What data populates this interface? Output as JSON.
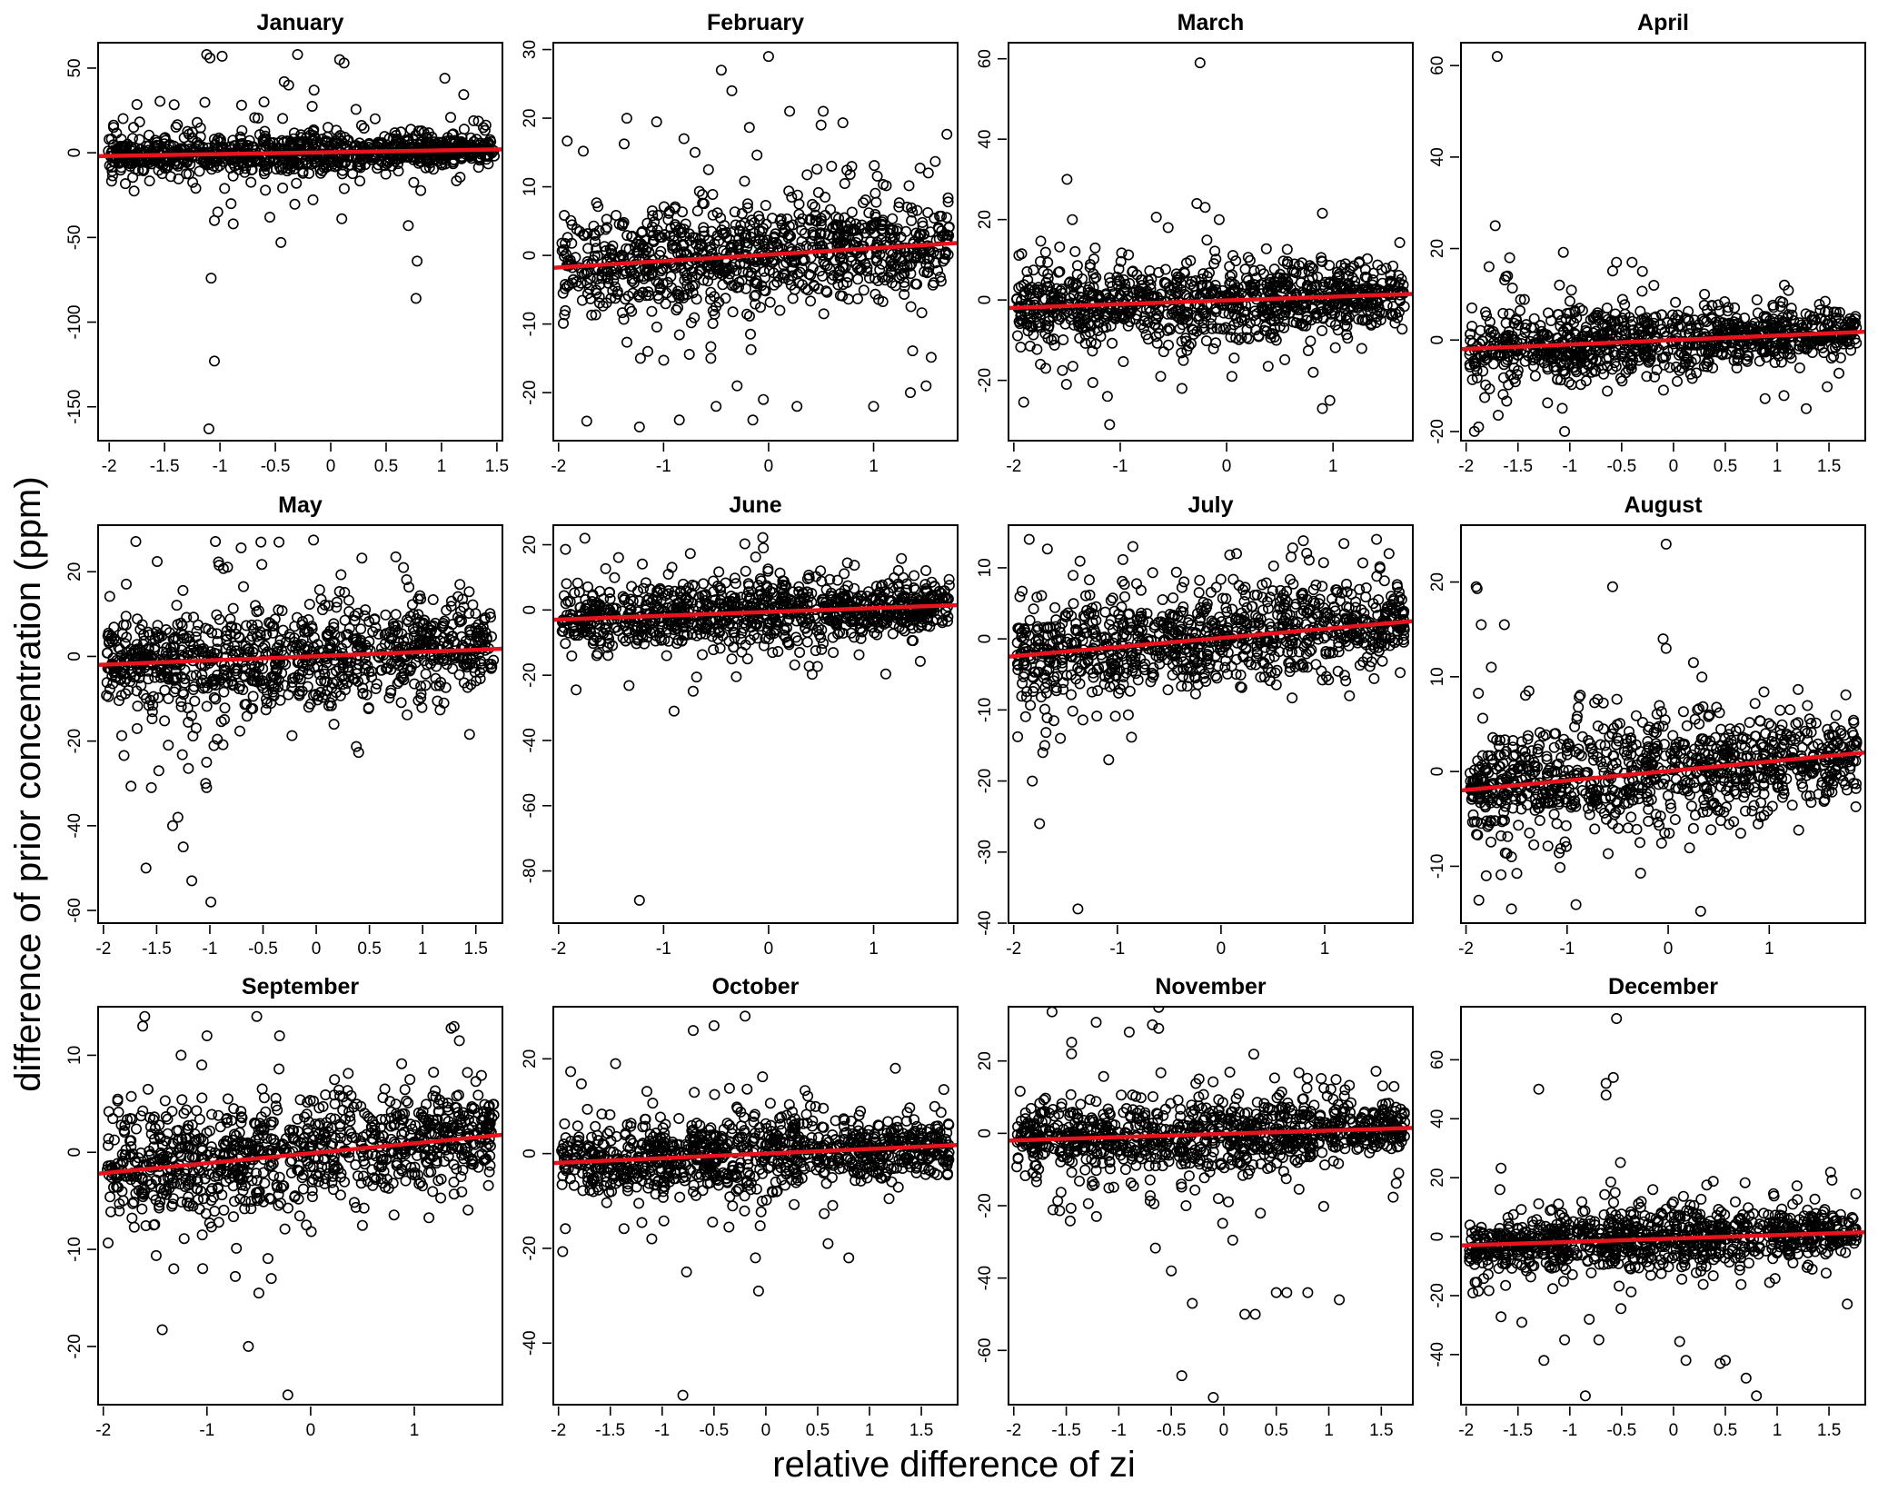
{
  "figure": {
    "xlabel": "relative difference of zi",
    "ylabel": "difference of prior concentration (ppm)"
  },
  "chart_data": [
    {
      "type": "scatter",
      "title": "January",
      "xlim": [
        -2.1,
        1.55
      ],
      "ylim": [
        -170,
        65
      ],
      "xticks": [
        -2.0,
        -1.5,
        -1.0,
        -0.5,
        0.0,
        0.5,
        1.0,
        1.5
      ],
      "yticks": [
        50,
        0,
        -50,
        -100,
        -150
      ],
      "fit": {
        "x": [
          -2.1,
          1.55
        ],
        "y": [
          -2,
          2
        ]
      },
      "spread": {
        "core": [
          4,
          6,
          3
        ],
        "tail": [
          18,
          12,
          12
        ]
      },
      "points": {
        "x": [
          -1.12,
          -1.09,
          -1.1,
          -1.05,
          -0.98,
          -1.08,
          -0.88,
          -0.3,
          -0.45,
          -1.02,
          0.08,
          0.12,
          1.03,
          -0.42,
          0.77,
          0.78,
          -0.55,
          -1.05,
          -0.15,
          -0.38,
          0.1,
          0.7,
          -0.9
        ],
        "y": [
          58,
          56,
          -163,
          -123,
          57,
          -74,
          -42,
          58,
          -53,
          -35,
          55,
          53,
          44,
          42,
          -86,
          -64,
          -38,
          -40,
          37,
          40,
          -39,
          -43,
          -30
        ]
      }
    },
    {
      "type": "scatter",
      "title": "February",
      "xlim": [
        -2.05,
        1.8
      ],
      "ylim": [
        -27,
        31
      ],
      "xticks": [
        -2,
        -1,
        0,
        1
      ],
      "yticks": [
        30,
        20,
        10,
        0,
        -10,
        -20
      ],
      "fit": {
        "x": [
          -2.05,
          1.8
        ],
        "y": [
          -1.8,
          1.8
        ]
      },
      "spread": {
        "core": [
          3,
          4,
          2.5
        ],
        "tail": [
          10,
          7,
          7
        ]
      },
      "points": {
        "x": [
          0.0,
          -0.45,
          -0.35,
          -1.35,
          0.2,
          -1.23,
          -1.15,
          -1.22,
          -0.85,
          -0.15,
          0.5,
          0.52,
          -0.05,
          -0.55,
          1.0,
          1.5,
          1.35,
          0.27,
          -0.5,
          -0.7,
          0.6,
          -0.3
        ],
        "y": [
          29,
          27,
          24,
          20,
          21,
          -25,
          -14,
          -15,
          -24,
          -24,
          19,
          21,
          -21,
          -15,
          -22,
          -19,
          -20,
          -22,
          -22,
          15,
          13,
          -19
        ]
      }
    },
    {
      "type": "scatter",
      "title": "March",
      "xlim": [
        -2.05,
        1.75
      ],
      "ylim": [
        -35,
        64
      ],
      "xticks": [
        -2,
        -1,
        0,
        1
      ],
      "yticks": [
        60,
        40,
        20,
        0,
        -20
      ],
      "fit": {
        "x": [
          -2.05,
          1.75
        ],
        "y": [
          -2,
          1.5
        ]
      },
      "spread": {
        "core": [
          4,
          5,
          3
        ],
        "tail": [
          12,
          9,
          8
        ]
      },
      "points": {
        "x": [
          -0.25,
          -1.1,
          -1.12,
          -1.5,
          -0.28,
          -0.07,
          -1.75,
          -1.7,
          -0.42,
          0.9,
          0.97,
          -1.45,
          -0.55,
          -0.62,
          0.05
        ],
        "y": [
          59,
          -31,
          -24,
          30,
          24,
          20,
          -16,
          -17,
          -22,
          -27,
          -25,
          20,
          18,
          -19,
          -19
        ]
      }
    },
    {
      "type": "scatter",
      "title": "April",
      "xlim": [
        -2.05,
        1.85
      ],
      "ylim": [
        -22,
        65
      ],
      "xticks": [
        -2.0,
        -1.5,
        -1.0,
        -0.5,
        0.0,
        0.5,
        1.0,
        1.5
      ],
      "yticks": [
        60,
        40,
        20,
        0,
        -20
      ],
      "fit": {
        "x": [
          -2.05,
          1.85
        ],
        "y": [
          -2,
          1.8
        ]
      },
      "spread": {
        "core": [
          3,
          4,
          2
        ],
        "tail": [
          9,
          6,
          5
        ]
      },
      "points": {
        "x": [
          -1.7,
          -1.72,
          -1.92,
          -1.88,
          -1.58,
          -1.05,
          -1.1,
          -0.55,
          -0.4,
          1.07,
          1.28,
          -1.6,
          -0.3,
          0.3
        ],
        "y": [
          62,
          25,
          -20,
          -19,
          18,
          -20,
          12,
          17,
          17,
          12,
          -15,
          14,
          15,
          10
        ]
      }
    },
    {
      "type": "scatter",
      "title": "May",
      "xlim": [
        -2.05,
        1.75
      ],
      "ylim": [
        -63,
        31
      ],
      "xticks": [
        -2.0,
        -1.5,
        -1.0,
        -0.5,
        0.0,
        0.5,
        1.0,
        1.5
      ],
      "yticks": [
        20,
        0,
        -20,
        -40,
        -60
      ],
      "fit": {
        "x": [
          -2.05,
          1.75
        ],
        "y": [
          -2,
          1.8
        ]
      },
      "spread": {
        "core": [
          5,
          6,
          4
        ],
        "tail": [
          14,
          11,
          9
        ]
      },
      "points": {
        "x": [
          -0.99,
          -1.6,
          -1.17,
          -1.3,
          -1.25,
          -1.03,
          -1.04,
          -1.03,
          -1.55,
          -1.48,
          -1.35,
          -0.52,
          -0.35,
          0.82,
          1.2,
          1.35
        ],
        "y": [
          -58,
          -50,
          -53,
          -38,
          -45,
          -31,
          -30,
          -25,
          -31,
          -27,
          -40,
          27,
          27,
          21,
          -11,
          17
        ]
      }
    },
    {
      "type": "scatter",
      "title": "June",
      "xlim": [
        -2.05,
        1.8
      ],
      "ylim": [
        -96,
        26
      ],
      "xticks": [
        -2,
        -1,
        0,
        1
      ],
      "yticks": [
        20,
        0,
        -20,
        -40,
        -60,
        -80
      ],
      "fit": {
        "x": [
          -2.05,
          1.8
        ],
        "y": [
          -3,
          1.5
        ]
      },
      "spread": {
        "core": [
          4,
          5,
          3.5
        ],
        "tail": [
          12,
          9,
          7
        ]
      },
      "points": {
        "x": [
          -1.23,
          -0.9,
          -1.75,
          -0.05,
          -0.35,
          -0.2
        ],
        "y": [
          -89,
          -31,
          22,
          19,
          -15,
          -15
        ]
      }
    },
    {
      "type": "scatter",
      "title": "July",
      "xlim": [
        -2.05,
        1.85
      ],
      "ylim": [
        -40,
        16
      ],
      "xticks": [
        -2,
        -1,
        0,
        1
      ],
      "yticks": [
        10,
        0,
        -10,
        -20,
        -30,
        -40
      ],
      "fit": {
        "x": [
          -2.05,
          1.85
        ],
        "y": [
          -2.5,
          2.5
        ]
      },
      "spread": {
        "core": [
          3,
          3.5,
          2.5
        ],
        "tail": [
          7,
          6,
          5
        ]
      },
      "points": {
        "x": [
          -1.38,
          -1.75,
          -1.82,
          -1.72,
          -1.7,
          -1.55,
          1.5,
          -1.85,
          0.15,
          -0.85,
          1.62
        ],
        "y": [
          -38,
          -26,
          -20,
          -16,
          -15,
          -14,
          14,
          14,
          12,
          13,
          12
        ]
      }
    },
    {
      "type": "scatter",
      "title": "August",
      "xlim": [
        -2.05,
        1.95
      ],
      "ylim": [
        -16,
        26
      ],
      "xticks": [
        -2,
        -1,
        0,
        1
      ],
      "yticks": [
        20,
        10,
        0,
        -10
      ],
      "fit": {
        "x": [
          -2.05,
          1.95
        ],
        "y": [
          -2,
          2
        ]
      },
      "spread": {
        "core": [
          2.5,
          3,
          2
        ],
        "tail": [
          6,
          5,
          4
        ]
      },
      "points": {
        "x": [
          -0.02,
          -1.9,
          -1.89,
          -0.55,
          -1.55,
          -1.85,
          -1.75,
          -0.05,
          -0.02,
          0.25,
          -1.62,
          -1.55,
          -1.8
        ],
        "y": [
          24,
          19.5,
          19.3,
          19.5,
          -14.5,
          15.5,
          11,
          14,
          13,
          11.5,
          15.5,
          -9,
          -11
        ]
      }
    },
    {
      "type": "scatter",
      "title": "September",
      "xlim": [
        -2.05,
        1.85
      ],
      "ylim": [
        -26,
        15
      ],
      "xticks": [
        -2,
        -1,
        0,
        1
      ],
      "yticks": [
        10,
        0,
        -10,
        -20
      ],
      "fit": {
        "x": [
          -2.05,
          1.85
        ],
        "y": [
          -2.2,
          1.8
        ]
      },
      "spread": {
        "core": [
          2.5,
          3,
          2
        ],
        "tail": [
          5,
          4.5,
          4
        ]
      },
      "points": {
        "x": [
          -0.22,
          -0.6,
          -0.5,
          -0.38,
          -1.32,
          -1.6,
          -1.62,
          -0.52,
          -0.3,
          -1.0,
          -1.05,
          -1.25
        ],
        "y": [
          -25,
          -20,
          -14.5,
          -13,
          -12,
          14,
          13,
          14,
          12,
          12,
          9,
          10
        ]
      }
    },
    {
      "type": "scatter",
      "title": "October",
      "xlim": [
        -2.05,
        1.85
      ],
      "ylim": [
        -53,
        31
      ],
      "xticks": [
        -2.0,
        -1.5,
        -1.0,
        -0.5,
        0.0,
        0.5,
        1.0,
        1.5
      ],
      "yticks": [
        20,
        0,
        -20,
        -40
      ],
      "fit": {
        "x": [
          -2.05,
          1.85
        ],
        "y": [
          -2,
          1.8
        ]
      },
      "spread": {
        "core": [
          3,
          4,
          2.5
        ],
        "tail": [
          9,
          7,
          5
        ]
      },
      "points": {
        "x": [
          -0.8,
          -0.07,
          -0.1,
          -0.5,
          -0.2,
          0.8,
          1.25,
          -1.1,
          -1.45,
          -0.7,
          0.6
        ],
        "y": [
          -51,
          -29,
          -22,
          27,
          29,
          -22,
          18,
          -18,
          19,
          26,
          -19
        ]
      }
    },
    {
      "type": "scatter",
      "title": "November",
      "xlim": [
        -2.05,
        1.8
      ],
      "ylim": [
        -75,
        35
      ],
      "xticks": [
        -2.0,
        -1.5,
        -1.0,
        -0.5,
        0.0,
        0.5,
        1.0,
        1.5
      ],
      "yticks": [
        20,
        0,
        -20,
        -40,
        -60
      ],
      "fit": {
        "x": [
          -2.05,
          1.8
        ],
        "y": [
          -2,
          1.5
        ]
      },
      "spread": {
        "core": [
          4,
          6,
          3
        ],
        "tail": [
          12,
          10,
          8
        ]
      },
      "points": {
        "x": [
          -0.1,
          -0.4,
          -0.68,
          -0.62,
          -0.3,
          0.3,
          0.5,
          0.6,
          0.2,
          1.1,
          -0.9,
          -1.45,
          -0.5,
          0.8
        ],
        "y": [
          -73,
          -67,
          30,
          29,
          -47,
          -50,
          -44,
          -44,
          -50,
          -46,
          28,
          22,
          -38,
          -44
        ]
      }
    },
    {
      "type": "scatter",
      "title": "December",
      "xlim": [
        -2.05,
        1.85
      ],
      "ylim": [
        -57,
        78
      ],
      "xticks": [
        -2.0,
        -1.5,
        -1.0,
        -0.5,
        0.0,
        0.5,
        1.0,
        1.5
      ],
      "yticks": [
        60,
        40,
        20,
        0,
        -20,
        -40
      ],
      "fit": {
        "x": [
          -2.05,
          1.85
        ],
        "y": [
          -3,
          1.5
        ]
      },
      "spread": {
        "core": [
          4,
          6,
          3
        ],
        "tail": [
          14,
          10,
          9
        ]
      },
      "points": {
        "x": [
          -0.55,
          -0.85,
          -0.65,
          0.8,
          -1.05,
          -0.72,
          -0.58,
          0.7,
          -1.3,
          0.45,
          0.12,
          0.5,
          -0.65,
          -1.25
        ],
        "y": [
          74,
          -54,
          52,
          -54,
          -35,
          -35,
          54,
          -48,
          50,
          -43,
          -42,
          -42,
          48,
          -42
        ]
      }
    }
  ]
}
